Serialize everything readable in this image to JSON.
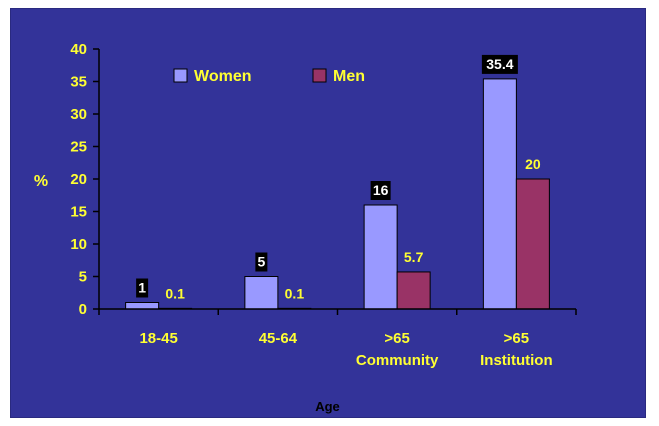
{
  "chart_data": {
    "type": "bar",
    "categories": [
      [
        "18-45"
      ],
      [
        "45-64"
      ],
      [
        ">65",
        "Community"
      ],
      [
        ">65",
        "Institution"
      ]
    ],
    "series": [
      {
        "name": "Women",
        "color": "#9999ff",
        "values": [
          1,
          5,
          16,
          35.4
        ],
        "labels": [
          "1",
          "5",
          "16",
          "35.4"
        ]
      },
      {
        "name": "Men",
        "color": "#993366",
        "values": [
          0.1,
          0.1,
          5.7,
          20
        ],
        "labels": [
          "0.1",
          "0.1",
          "5.7",
          "20"
        ]
      }
    ],
    "yticks": [
      "0",
      "5",
      "10",
      "15",
      "20",
      "25",
      "30",
      "35",
      "40"
    ],
    "ylim": [
      0,
      40
    ],
    "ylabel": "%",
    "xlabel": "Age",
    "legend": "top-left",
    "colors": {
      "background": "#333399",
      "text": "#ffff33",
      "axis": "#000000"
    }
  }
}
